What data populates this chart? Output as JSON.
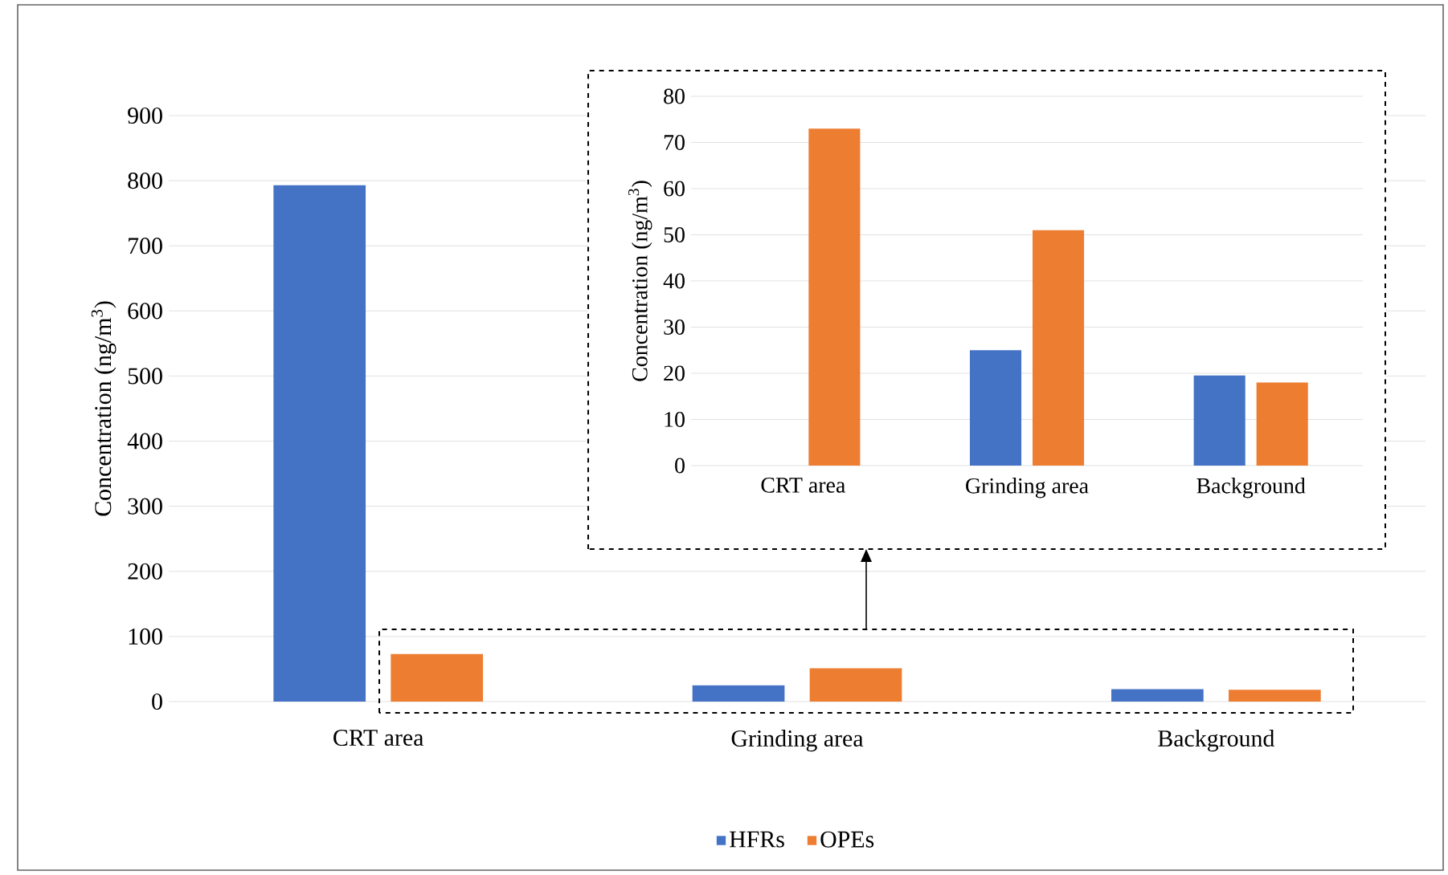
{
  "chart_data": [
    {
      "type": "bar",
      "ylabel": "Concentration (ng/m$^{3}$)",
      "categories": [
        "CRT area",
        "Grinding area",
        "Background"
      ],
      "series": [
        {
          "name": "HFRs",
          "color": "#4472c4",
          "values": [
            793,
            25,
            19
          ]
        },
        {
          "name": "OPEs",
          "color": "#ed7d31",
          "values": [
            73,
            51,
            18
          ]
        }
      ],
      "ylim": [
        0,
        900
      ],
      "yticks": [
        0,
        100,
        200,
        300,
        400,
        500,
        600,
        700,
        800,
        900
      ],
      "grid": "y",
      "legend": "bottom"
    },
    {
      "type": "bar",
      "ylabel": "Concentration (ng/m$^{3}$)",
      "categories": [
        "CRT area",
        "Grinding area",
        "Background"
      ],
      "series": [
        {
          "color": "#4472c4",
          "values": [
            null,
            25,
            19.5
          ]
        },
        {
          "color": "#ed7d31",
          "values": [
            73,
            51,
            18
          ]
        }
      ],
      "ylim": [
        0,
        80
      ],
      "yticks": [
        0,
        10,
        20,
        30,
        40,
        50,
        60,
        70,
        80
      ],
      "grid": "y",
      "legend": false
    }
  ]
}
